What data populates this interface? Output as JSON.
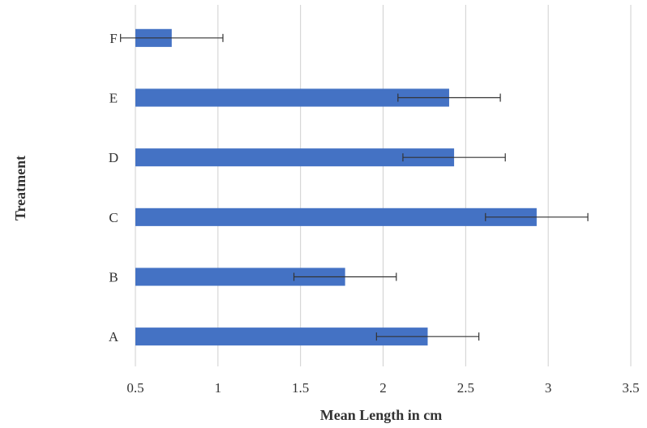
{
  "chart_data": {
    "type": "bar",
    "orientation": "horizontal",
    "categories": [
      "A",
      "B",
      "C",
      "D",
      "E",
      "F"
    ],
    "values": [
      2.27,
      1.77,
      2.93,
      2.43,
      2.4,
      0.72
    ],
    "error": [
      0.31,
      0.31,
      0.31,
      0.31,
      0.31,
      0.31
    ],
    "xlabel": "Mean Length in cm",
    "ylabel": "Treatment",
    "xlim": [
      0.5,
      3.5
    ],
    "xticks": [
      "0.5",
      "1",
      "1.5",
      "2",
      "2.5",
      "3",
      "3.5"
    ],
    "grid": "vertical",
    "colors": {
      "bar": "#4472c4"
    }
  }
}
